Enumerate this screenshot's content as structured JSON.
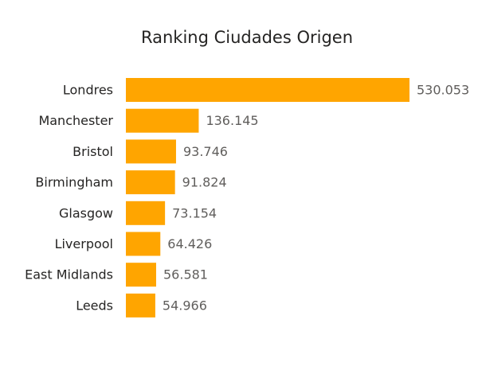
{
  "chart_data": {
    "type": "bar",
    "orientation": "horizontal",
    "title": "Ranking Ciudades Origen",
    "categories": [
      "Londres",
      "Manchester",
      "Bristol",
      "Birmingham",
      "Glasgow",
      "Liverpool",
      "East Midlands",
      "Leeds"
    ],
    "values": [
      530053,
      136145,
      93746,
      91824,
      73154,
      64426,
      56581,
      54966
    ],
    "value_labels": [
      "530.053",
      "136.145",
      "93.746",
      "91.824",
      "73.154",
      "64.426",
      "56.581",
      "54.966"
    ],
    "xlim": [
      0,
      530053
    ],
    "grid": false,
    "legend": "none",
    "colors": {
      "bar": "#FFA500",
      "title": "#252423",
      "category_text": "#252423",
      "value_text": "#605E5C"
    }
  }
}
